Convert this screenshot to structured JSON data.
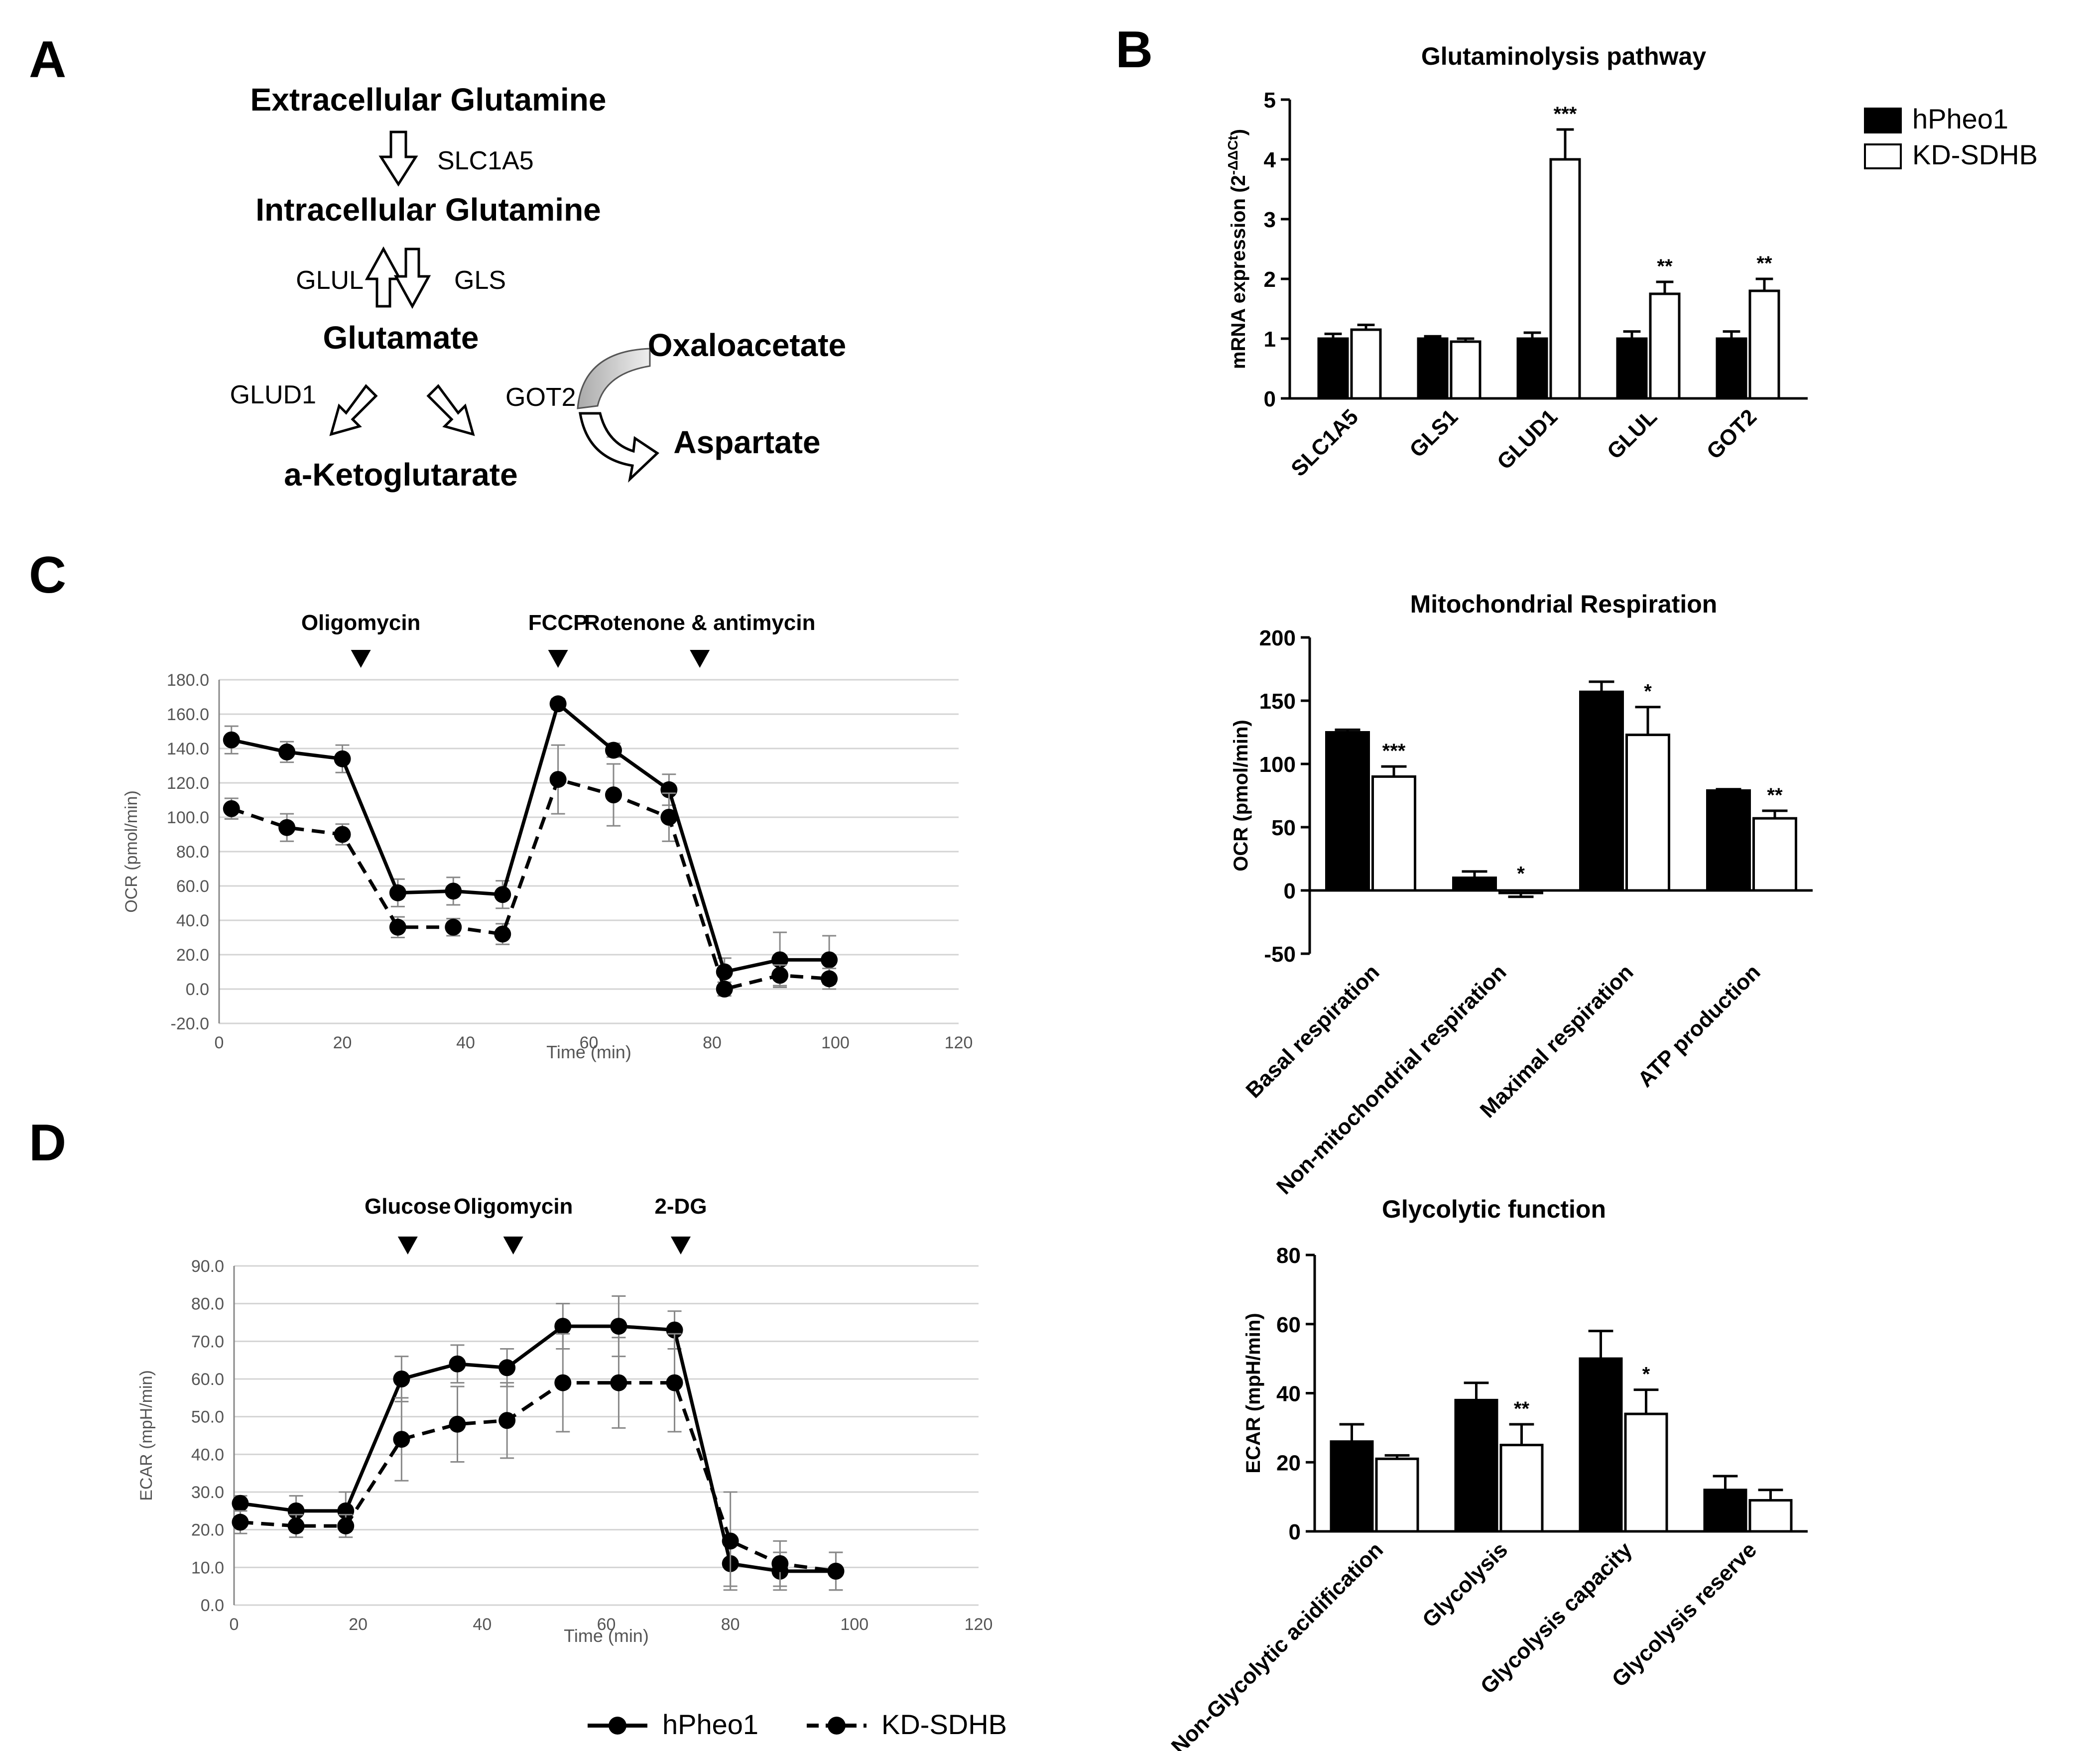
{
  "panels": {
    "A": {
      "letter": "A",
      "metabolites": {
        "ext_gln": "Extracellular Glutamine",
        "int_gln": "Intracellular Glutamine",
        "glu": "Glutamate",
        "akg": "a-Ketoglutarate",
        "oaa": "Oxaloacetate",
        "asp": "Aspartate"
      },
      "enzymes": {
        "slc1a5": "SLC1A5",
        "glul": "GLUL",
        "gls": "GLS",
        "glud1": "GLUD1",
        "got2": "GOT2"
      }
    },
    "B": {
      "letter": "B"
    },
    "C": {
      "letter": "C"
    },
    "D": {
      "letter": "D"
    }
  },
  "legend_top": {
    "series": [
      "hPheo1",
      "KD-SDHB"
    ]
  },
  "legend_bottom": {
    "series": [
      "hPheo1",
      "KD-SDHB"
    ]
  },
  "chart_data": [
    {
      "id": "B",
      "type": "bar",
      "title": "Glutaminolysis pathway",
      "ylabel_main": "mRNA expression (2",
      "ylabel_sup": "-ΔΔCt",
      "ylabel_end": ")",
      "ylim": [
        0,
        5
      ],
      "yticks": [
        0,
        1,
        2,
        3,
        4,
        5
      ],
      "ytick_labels": [
        "0",
        "1",
        "2",
        "3",
        "4",
        "5"
      ],
      "categories": [
        "SLC1A5",
        "GLS1",
        "GLUD1",
        "GLUL",
        "GOT2"
      ],
      "series": [
        {
          "name": "hPheo1",
          "values": [
            1.0,
            1.0,
            1.0,
            1.0,
            1.0
          ],
          "errors": [
            0.08,
            0.04,
            0.1,
            0.12,
            0.12
          ]
        },
        {
          "name": "KD-SDHB",
          "values": [
            1.15,
            0.95,
            4.0,
            1.75,
            1.8
          ],
          "errors": [
            0.08,
            0.05,
            0.5,
            0.2,
            0.2
          ]
        }
      ],
      "significance": [
        "",
        "",
        "***",
        "**",
        "**"
      ]
    },
    {
      "id": "C_line",
      "type": "line",
      "title": "",
      "xlabel": "Time (min)",
      "ylabel": "OCR (pmol/min)",
      "xlim": [
        0,
        120
      ],
      "xticks": [
        0,
        20,
        40,
        60,
        80,
        100,
        120
      ],
      "xtick_labels": [
        "0",
        "20",
        "40",
        "60",
        "80",
        "100",
        "120"
      ],
      "ylim": [
        -20,
        180
      ],
      "yticks": [
        -20,
        0,
        20,
        40,
        60,
        80,
        100,
        120,
        140,
        160,
        180
      ],
      "ytick_labels": [
        "-20.0",
        "0.0",
        "20.0",
        "40.0",
        "60.0",
        "80.0",
        "100.0",
        "120.0",
        "140.0",
        "160.0",
        "180.0"
      ],
      "x": [
        2,
        11,
        20,
        29,
        38,
        46,
        55,
        64,
        73,
        82,
        91,
        99
      ],
      "series": [
        {
          "name": "hPheo1",
          "values": [
            145,
            138,
            134,
            56,
            57,
            55,
            166,
            139,
            116,
            10,
            17,
            17
          ],
          "errors": [
            8,
            6,
            8,
            8,
            8,
            8,
            3,
            4,
            9,
            8,
            16,
            14
          ]
        },
        {
          "name": "KD-SDHB",
          "values": [
            105,
            94,
            90,
            36,
            36,
            32,
            122,
            113,
            100,
            0,
            8,
            6
          ],
          "errors": [
            6,
            8,
            6,
            6,
            5,
            6,
            20,
            18,
            14,
            4,
            6,
            6
          ]
        }
      ],
      "annotations": [
        {
          "label": "Oligomycin",
          "x": 23
        },
        {
          "label": "FCCP",
          "x": 55
        },
        {
          "label": "Rotenone & antimycin",
          "x": 78
        }
      ]
    },
    {
      "id": "C_bar",
      "type": "bar",
      "title": "Mitochondrial Respiration",
      "ylabel": "OCR (pmol/min)",
      "ylim": [
        -50,
        200
      ],
      "yticks": [
        -50,
        0,
        50,
        100,
        150,
        200
      ],
      "ytick_labels": [
        "-50",
        "0",
        "50",
        "100",
        "150",
        "200"
      ],
      "categories": [
        "Basal respiration",
        "Non-mitochondrial respiration",
        "Maximal respiration",
        "ATP production"
      ],
      "series": [
        {
          "name": "hPheo1",
          "values": [
            125,
            10,
            157,
            79
          ],
          "errors": [
            2,
            5,
            8,
            1
          ]
        },
        {
          "name": "KD-SDHB",
          "values": [
            90,
            -2,
            123,
            57
          ],
          "errors": [
            8,
            3,
            22,
            6
          ]
        }
      ],
      "significance": [
        "***",
        "*",
        "*",
        "**"
      ]
    },
    {
      "id": "D_line",
      "type": "line",
      "title": "",
      "xlabel": "Time (min)",
      "ylabel": "ECAR (mpH/min)",
      "xlim": [
        0,
        120
      ],
      "xticks": [
        0,
        20,
        40,
        60,
        80,
        100,
        120
      ],
      "xtick_labels": [
        "0",
        "20",
        "40",
        "60",
        "80",
        "100",
        "120"
      ],
      "ylim": [
        0,
        90
      ],
      "yticks": [
        0,
        10,
        20,
        30,
        40,
        50,
        60,
        70,
        80,
        90
      ],
      "ytick_labels": [
        "0.0",
        "10.0",
        "20.0",
        "30.0",
        "40.0",
        "50.0",
        "60.0",
        "70.0",
        "80.0",
        "90.0"
      ],
      "x": [
        1,
        10,
        18,
        27,
        36,
        44,
        53,
        62,
        71,
        80,
        88,
        97
      ],
      "series": [
        {
          "name": "hPheo1",
          "values": [
            27,
            25,
            25,
            60,
            64,
            63,
            74,
            74,
            73,
            11,
            9,
            9
          ],
          "errors": [
            2,
            4,
            5,
            6,
            5,
            5,
            6,
            8,
            5,
            6,
            5,
            5
          ]
        },
        {
          "name": "KD-SDHB",
          "values": [
            22,
            21,
            21,
            44,
            48,
            49,
            59,
            59,
            59,
            17,
            11,
            9
          ],
          "errors": [
            3,
            3,
            3,
            11,
            10,
            10,
            13,
            12,
            13,
            13,
            6,
            5
          ]
        }
      ],
      "annotations": [
        {
          "label": "Glucose",
          "x": 28
        },
        {
          "label": "Oligomycin",
          "x": 45
        },
        {
          "label": "2-DG",
          "x": 72
        }
      ]
    },
    {
      "id": "D_bar",
      "type": "bar",
      "title": "Glycolytic function",
      "ylabel": "ECAR (mpH/min)",
      "ylim": [
        0,
        80
      ],
      "yticks": [
        0,
        20,
        40,
        60,
        80
      ],
      "ytick_labels": [
        "0",
        "20",
        "40",
        "60",
        "80"
      ],
      "categories": [
        "Non-Glycolytic acidification",
        "Glycolysis",
        "Glycolysis capacity",
        "Glycolysis reserve"
      ],
      "series": [
        {
          "name": "hPheo1",
          "values": [
            26,
            38,
            50,
            12
          ],
          "errors": [
            5,
            5,
            8,
            4
          ]
        },
        {
          "name": "KD-SDHB",
          "values": [
            21,
            25,
            34,
            9
          ],
          "errors": [
            1,
            6,
            7,
            3
          ]
        }
      ],
      "significance": [
        "",
        "**",
        "*",
        ""
      ]
    }
  ]
}
